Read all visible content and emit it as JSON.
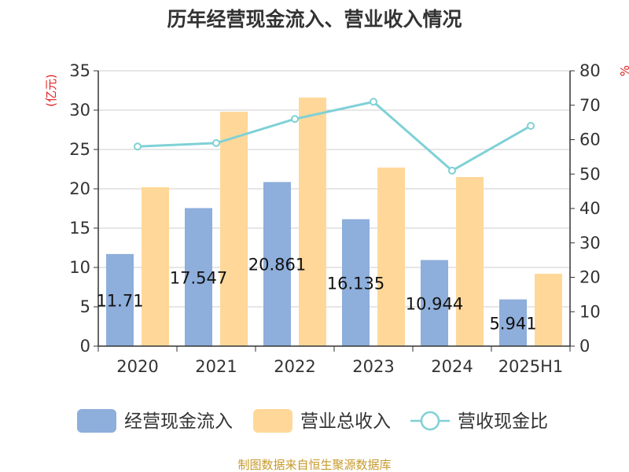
{
  "chart_data": {
    "type": "bar",
    "title": "历年经营现金流入、营业收入情况",
    "categories": [
      "2020",
      "2021",
      "2022",
      "2023",
      "2024",
      "2025H1"
    ],
    "series": [
      {
        "name": "经营现金流入",
        "type": "bar",
        "axis": "left",
        "color": "#8eaedb",
        "values": [
          11.71,
          17.547,
          20.861,
          16.135,
          10.944,
          5.941
        ],
        "labels": [
          "11.71",
          "17.547",
          "20.861",
          "16.135",
          "10.944",
          "5.941"
        ]
      },
      {
        "name": "营业总收入",
        "type": "bar",
        "axis": "left",
        "color": "#ffd899",
        "values": [
          20.2,
          29.8,
          31.6,
          22.7,
          21.5,
          9.2
        ]
      },
      {
        "name": "营收现金比",
        "type": "line",
        "axis": "right",
        "color": "#7fd1d6",
        "values": [
          58,
          59,
          66,
          71,
          51,
          64
        ]
      }
    ],
    "yleft": {
      "label": "(亿元)",
      "lim": [
        0,
        35
      ],
      "ticks": [
        "0",
        "5",
        "10",
        "15",
        "20",
        "25",
        "30",
        "35"
      ]
    },
    "yright": {
      "label": "%",
      "lim": [
        0,
        80
      ],
      "ticks": [
        "0",
        "10",
        "20",
        "30",
        "40",
        "50",
        "60",
        "70",
        "80"
      ]
    },
    "grid": true,
    "legend": "bottom",
    "source": "制图数据来自恒生聚源数据库"
  }
}
